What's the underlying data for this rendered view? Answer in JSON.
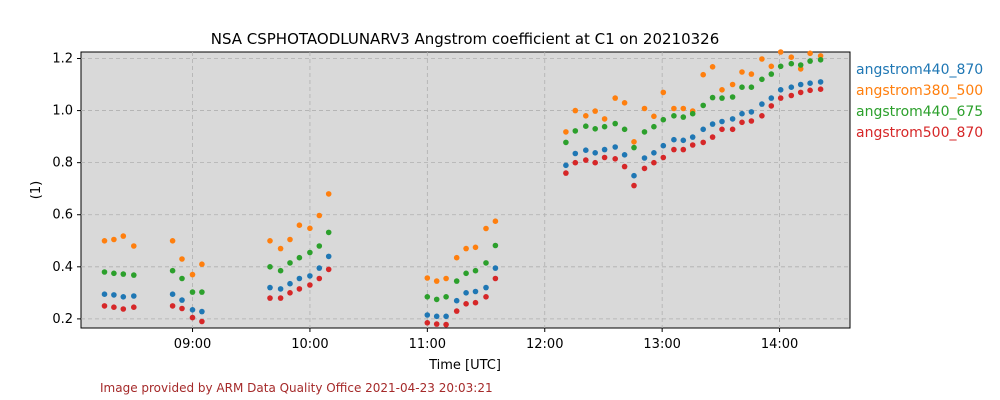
{
  "chart_data": {
    "type": "scatter",
    "title": "NSA CSPHOTAODLUNARV3 Angstrom coefficient at C1 on 20210326",
    "xlabel": "Time [UTC]",
    "ylabel": "(1)",
    "xlim": [
      8.05,
      14.6
    ],
    "ylim": [
      0.165,
      1.225
    ],
    "grid": true,
    "legend_placement": "outside-right",
    "background_color": "#d9d9d9",
    "x_ticks": [
      {
        "value": 9,
        "label": "09:00"
      },
      {
        "value": 10,
        "label": "10:00"
      },
      {
        "value": 11,
        "label": "11:00"
      },
      {
        "value": 12,
        "label": "12:00"
      },
      {
        "value": 13,
        "label": "13:00"
      },
      {
        "value": 14,
        "label": "14:00"
      }
    ],
    "y_ticks": [
      {
        "value": 0.2,
        "label": "0.2"
      },
      {
        "value": 0.4,
        "label": "0.4"
      },
      {
        "value": 0.6,
        "label": "0.6"
      },
      {
        "value": 0.8,
        "label": "0.8"
      },
      {
        "value": 1.0,
        "label": "1.0"
      },
      {
        "value": 1.2,
        "label": "1.2"
      }
    ],
    "series": [
      {
        "name": "angstrom440_870",
        "color": "#1f77b4",
        "points": [
          [
            8.25,
            0.295
          ],
          [
            8.33,
            0.292
          ],
          [
            8.41,
            0.285
          ],
          [
            8.5,
            0.288
          ],
          [
            8.83,
            0.295
          ],
          [
            8.91,
            0.272
          ],
          [
            9.0,
            0.235
          ],
          [
            9.08,
            0.228
          ],
          [
            9.66,
            0.32
          ],
          [
            9.75,
            0.315
          ],
          [
            9.83,
            0.335
          ],
          [
            9.91,
            0.355
          ],
          [
            10.0,
            0.365
          ],
          [
            10.08,
            0.395
          ],
          [
            10.16,
            0.44
          ],
          [
            11.0,
            0.215
          ],
          [
            11.08,
            0.21
          ],
          [
            11.16,
            0.21
          ],
          [
            11.25,
            0.27
          ],
          [
            11.33,
            0.3
          ],
          [
            11.41,
            0.305
          ],
          [
            11.5,
            0.32
          ],
          [
            11.58,
            0.395
          ],
          [
            12.18,
            0.79
          ],
          [
            12.26,
            0.835
          ],
          [
            12.35,
            0.848
          ],
          [
            12.43,
            0.838
          ],
          [
            12.51,
            0.85
          ],
          [
            12.6,
            0.86
          ],
          [
            12.68,
            0.83
          ],
          [
            12.76,
            0.75
          ],
          [
            12.85,
            0.818
          ],
          [
            12.93,
            0.838
          ],
          [
            13.01,
            0.865
          ],
          [
            13.1,
            0.888
          ],
          [
            13.18,
            0.886
          ],
          [
            13.26,
            0.898
          ],
          [
            13.35,
            0.928
          ],
          [
            13.43,
            0.948
          ],
          [
            13.51,
            0.958
          ],
          [
            13.6,
            0.968
          ],
          [
            13.68,
            0.988
          ],
          [
            13.76,
            0.995
          ],
          [
            13.85,
            1.025
          ],
          [
            13.93,
            1.048
          ],
          [
            14.01,
            1.08
          ],
          [
            14.1,
            1.09
          ],
          [
            14.18,
            1.1
          ],
          [
            14.26,
            1.105
          ],
          [
            14.35,
            1.11
          ]
        ]
      },
      {
        "name": "angstrom380_500",
        "color": "#ff7f0e",
        "points": [
          [
            8.25,
            0.5
          ],
          [
            8.33,
            0.505
          ],
          [
            8.41,
            0.518
          ],
          [
            8.5,
            0.48
          ],
          [
            8.83,
            0.5
          ],
          [
            8.91,
            0.43
          ],
          [
            9.0,
            0.37
          ],
          [
            9.08,
            0.41
          ],
          [
            9.66,
            0.5
          ],
          [
            9.75,
            0.47
          ],
          [
            9.83,
            0.505
          ],
          [
            9.91,
            0.56
          ],
          [
            10.0,
            0.548
          ],
          [
            10.08,
            0.597
          ],
          [
            10.16,
            0.68
          ],
          [
            11.0,
            0.357
          ],
          [
            11.08,
            0.345
          ],
          [
            11.16,
            0.355
          ],
          [
            11.25,
            0.435
          ],
          [
            11.33,
            0.47
          ],
          [
            11.41,
            0.475
          ],
          [
            11.5,
            0.547
          ],
          [
            11.58,
            0.575
          ],
          [
            12.18,
            0.918
          ],
          [
            12.26,
            1.0
          ],
          [
            12.35,
            0.98
          ],
          [
            12.43,
            0.998
          ],
          [
            12.51,
            0.968
          ],
          [
            12.6,
            1.048
          ],
          [
            12.68,
            1.03
          ],
          [
            12.76,
            0.88
          ],
          [
            12.85,
            1.008
          ],
          [
            12.93,
            0.978
          ],
          [
            13.01,
            1.07
          ],
          [
            13.1,
            1.008
          ],
          [
            13.18,
            1.008
          ],
          [
            13.26,
            0.998
          ],
          [
            13.35,
            1.138
          ],
          [
            13.43,
            1.168
          ],
          [
            13.51,
            1.08
          ],
          [
            13.6,
            1.1
          ],
          [
            13.68,
            1.148
          ],
          [
            13.76,
            1.14
          ],
          [
            13.85,
            1.198
          ],
          [
            13.93,
            1.17
          ],
          [
            14.01,
            1.225
          ],
          [
            14.1,
            1.205
          ],
          [
            14.18,
            1.16
          ],
          [
            14.26,
            1.22
          ],
          [
            14.35,
            1.21
          ]
        ]
      },
      {
        "name": "angstrom440_675",
        "color": "#2ca02c",
        "points": [
          [
            8.25,
            0.38
          ],
          [
            8.33,
            0.375
          ],
          [
            8.41,
            0.372
          ],
          [
            8.5,
            0.368
          ],
          [
            8.83,
            0.385
          ],
          [
            8.91,
            0.355
          ],
          [
            9.0,
            0.303
          ],
          [
            9.08,
            0.303
          ],
          [
            9.66,
            0.4
          ],
          [
            9.75,
            0.385
          ],
          [
            9.83,
            0.415
          ],
          [
            9.91,
            0.435
          ],
          [
            10.0,
            0.455
          ],
          [
            10.08,
            0.48
          ],
          [
            10.16,
            0.532
          ],
          [
            11.0,
            0.285
          ],
          [
            11.08,
            0.275
          ],
          [
            11.16,
            0.285
          ],
          [
            11.25,
            0.345
          ],
          [
            11.33,
            0.375
          ],
          [
            11.41,
            0.385
          ],
          [
            11.5,
            0.415
          ],
          [
            11.58,
            0.482
          ],
          [
            12.18,
            0.878
          ],
          [
            12.26,
            0.922
          ],
          [
            12.35,
            0.94
          ],
          [
            12.43,
            0.93
          ],
          [
            12.51,
            0.938
          ],
          [
            12.6,
            0.95
          ],
          [
            12.68,
            0.928
          ],
          [
            12.76,
            0.858
          ],
          [
            12.85,
            0.918
          ],
          [
            12.93,
            0.938
          ],
          [
            13.01,
            0.965
          ],
          [
            13.1,
            0.98
          ],
          [
            13.18,
            0.975
          ],
          [
            13.26,
            0.988
          ],
          [
            13.35,
            1.02
          ],
          [
            13.43,
            1.05
          ],
          [
            13.51,
            1.048
          ],
          [
            13.6,
            1.052
          ],
          [
            13.68,
            1.09
          ],
          [
            13.76,
            1.09
          ],
          [
            13.85,
            1.12
          ],
          [
            13.93,
            1.14
          ],
          [
            14.01,
            1.17
          ],
          [
            14.1,
            1.18
          ],
          [
            14.18,
            1.175
          ],
          [
            14.26,
            1.19
          ],
          [
            14.35,
            1.195
          ]
        ]
      },
      {
        "name": "angstrom500_870",
        "color": "#d62728",
        "points": [
          [
            8.25,
            0.25
          ],
          [
            8.33,
            0.245
          ],
          [
            8.41,
            0.238
          ],
          [
            8.5,
            0.245
          ],
          [
            8.83,
            0.25
          ],
          [
            8.91,
            0.24
          ],
          [
            9.0,
            0.205
          ],
          [
            9.08,
            0.19
          ],
          [
            9.66,
            0.28
          ],
          [
            9.75,
            0.28
          ],
          [
            9.83,
            0.3
          ],
          [
            9.91,
            0.315
          ],
          [
            10.0,
            0.33
          ],
          [
            10.08,
            0.355
          ],
          [
            10.16,
            0.39
          ],
          [
            11.0,
            0.185
          ],
          [
            11.08,
            0.18
          ],
          [
            11.16,
            0.178
          ],
          [
            11.25,
            0.23
          ],
          [
            11.33,
            0.258
          ],
          [
            11.41,
            0.262
          ],
          [
            11.5,
            0.285
          ],
          [
            11.58,
            0.355
          ],
          [
            12.18,
            0.76
          ],
          [
            12.26,
            0.8
          ],
          [
            12.35,
            0.81
          ],
          [
            12.43,
            0.8
          ],
          [
            12.51,
            0.82
          ],
          [
            12.6,
            0.815
          ],
          [
            12.68,
            0.785
          ],
          [
            12.76,
            0.712
          ],
          [
            12.85,
            0.778
          ],
          [
            12.93,
            0.8
          ],
          [
            13.01,
            0.82
          ],
          [
            13.1,
            0.85
          ],
          [
            13.18,
            0.85
          ],
          [
            13.26,
            0.868
          ],
          [
            13.35,
            0.878
          ],
          [
            13.43,
            0.898
          ],
          [
            13.51,
            0.928
          ],
          [
            13.6,
            0.928
          ],
          [
            13.68,
            0.955
          ],
          [
            13.76,
            0.96
          ],
          [
            13.85,
            0.98
          ],
          [
            13.93,
            1.018
          ],
          [
            14.01,
            1.048
          ],
          [
            14.1,
            1.058
          ],
          [
            14.18,
            1.07
          ],
          [
            14.26,
            1.078
          ],
          [
            14.35,
            1.082
          ]
        ]
      }
    ]
  },
  "footer": {
    "text": "Image provided by ARM Data Quality Office 2021-04-23 20:03:21"
  }
}
